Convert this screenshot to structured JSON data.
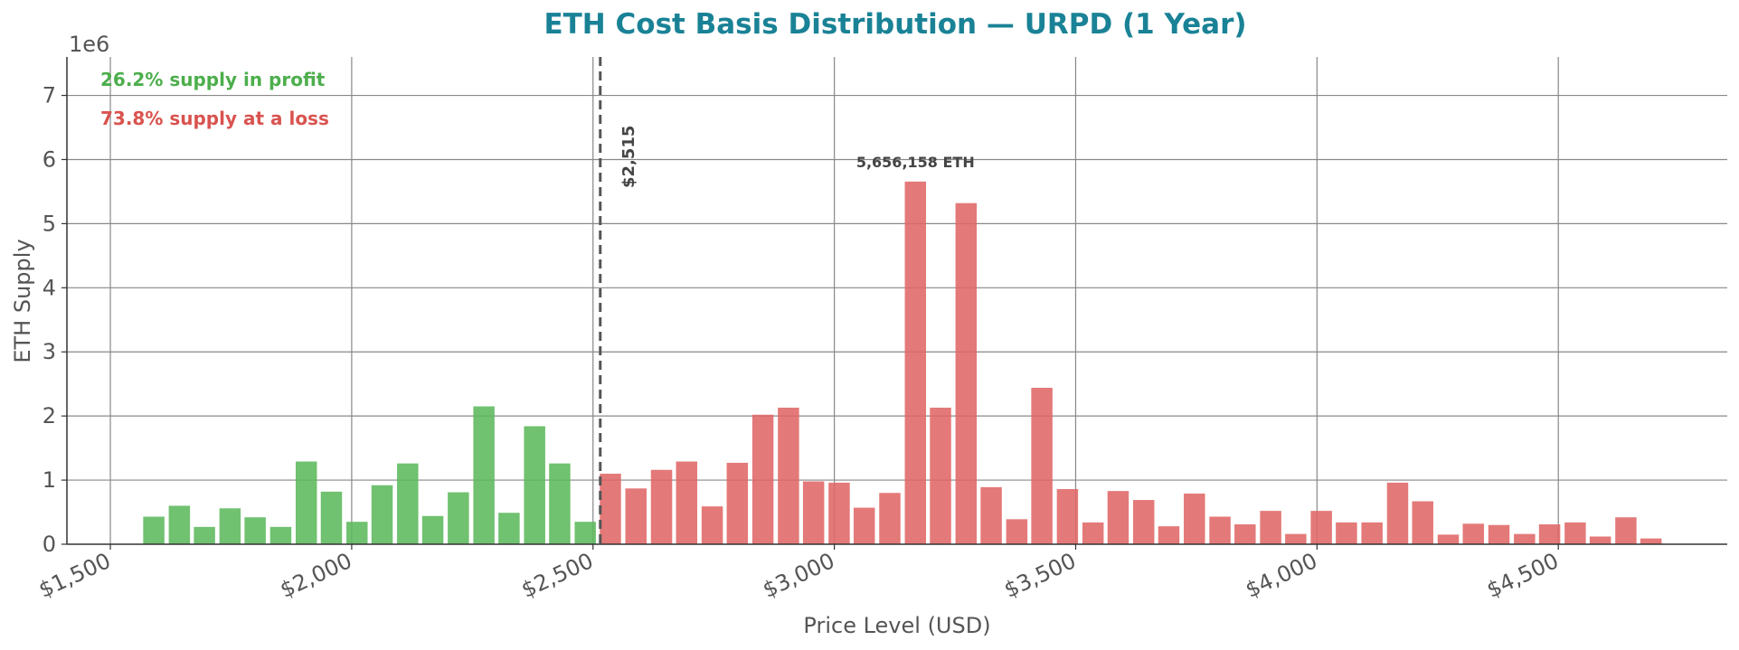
{
  "chart_data": {
    "type": "bar",
    "title": "ETH Cost Basis Distribution — URPD (1 Year)",
    "xlabel": "Price Level (USD)",
    "ylabel": "ETH Supply",
    "y_offset_text": "1e6",
    "xlim": [
      1410,
      4850
    ],
    "ylim": [
      0,
      7600000
    ],
    "x_scale_note": "linear",
    "grid": true,
    "x_ticks": [
      {
        "value": 1500,
        "label": "$1,500"
      },
      {
        "value": 2000,
        "label": "$2,000"
      },
      {
        "value": 2500,
        "label": "$2,500"
      },
      {
        "value": 3000,
        "label": "$3,000"
      },
      {
        "value": 3500,
        "label": "$3,500"
      },
      {
        "value": 4000,
        "label": "$4,000"
      },
      {
        "value": 4500,
        "label": "$4,500"
      }
    ],
    "y_ticks": [
      {
        "value": 0,
        "label": "0"
      },
      {
        "value": 1000000,
        "label": "1"
      },
      {
        "value": 2000000,
        "label": "2"
      },
      {
        "value": 3000000,
        "label": "3"
      },
      {
        "value": 4000000,
        "label": "4"
      },
      {
        "value": 5000000,
        "label": "5"
      },
      {
        "value": 6000000,
        "label": "6"
      },
      {
        "value": 7000000,
        "label": "7"
      }
    ],
    "bar_width": 44,
    "current_price": 2515,
    "current_price_label": "$2,515",
    "peak": {
      "x": 3168,
      "value": 5656158,
      "label": "5,656,158 ETH"
    },
    "series": [
      {
        "status": "profit",
        "color": "#5cb85c",
        "x": [
          1590,
          1643,
          1695,
          1748,
          1800,
          1853,
          1906,
          1958,
          2011,
          2063,
          2116,
          2168,
          2221,
          2274,
          2326,
          2379,
          2431,
          2484
        ],
        "values": [
          430000,
          600000,
          270000,
          560000,
          420000,
          270000,
          1290000,
          820000,
          350000,
          920000,
          1260000,
          440000,
          810000,
          2150000,
          490000,
          1840000,
          1260000,
          350000
        ]
      },
      {
        "status": "loss",
        "color": "#e06666",
        "x": [
          2536,
          2589,
          2642,
          2694,
          2747,
          2799,
          2852,
          2905,
          2957,
          3010,
          3062,
          3115,
          3168,
          3220,
          3273,
          3325,
          3378,
          3430,
          3483,
          3536,
          3588,
          3641,
          3693,
          3746,
          3799,
          3851,
          3904,
          3956,
          4009,
          4061,
          4114,
          4167,
          4219,
          4272,
          4324,
          4377,
          4430,
          4482,
          4535,
          4587,
          4640,
          4692
        ],
        "values": [
          1100000,
          870000,
          1160000,
          1290000,
          590000,
          1270000,
          2020000,
          2130000,
          980000,
          960000,
          570000,
          800000,
          5656158,
          2130000,
          5320000,
          890000,
          390000,
          2440000,
          860000,
          340000,
          830000,
          690000,
          280000,
          790000,
          430000,
          310000,
          520000,
          160000,
          520000,
          340000,
          340000,
          960000,
          670000,
          150000,
          320000,
          300000,
          160000,
          310000,
          340000,
          120000,
          420000,
          90000
        ]
      }
    ],
    "annotations": [
      {
        "text": "26.2% supply in profit",
        "color": "#4cae4c"
      },
      {
        "text": "73.8% supply at a loss",
        "color": "#d9534f"
      }
    ],
    "title_color": "#1a8296"
  }
}
